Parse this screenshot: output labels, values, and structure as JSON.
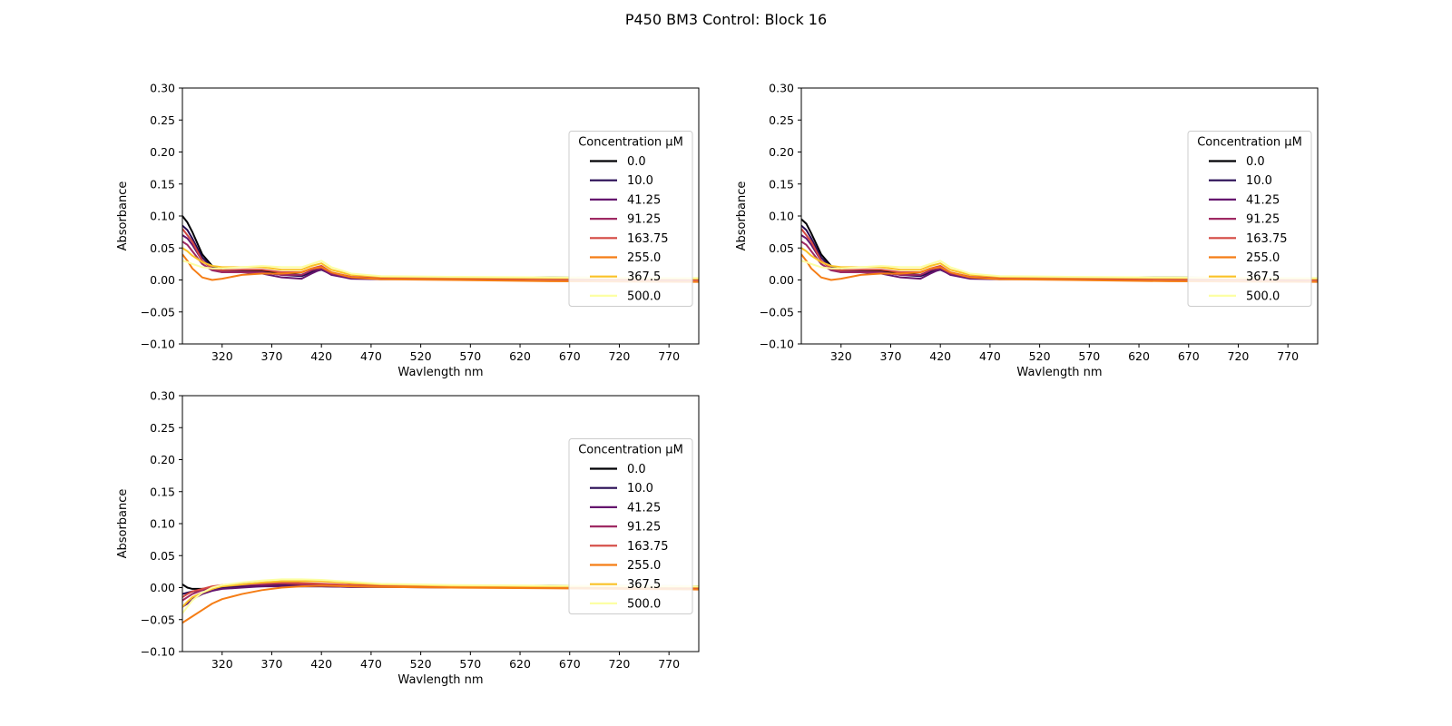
{
  "figure": {
    "title": "P450 BM3 Control:  Block 16"
  },
  "colors": {
    "series": [
      "#000004",
      "#280b54",
      "#65156e",
      "#9f2a63",
      "#d44842",
      "#f57d15",
      "#fac228",
      "#fcffa4"
    ]
  },
  "chart_data": [
    {
      "type": "line",
      "panel": "top-left",
      "xlabel": "Wavlength nm",
      "ylabel": "Absorbance",
      "xlim": [
        280,
        800
      ],
      "ylim": [
        -0.1,
        0.3
      ],
      "xticks": [
        "320",
        "370",
        "420",
        "470",
        "520",
        "570",
        "620",
        "670",
        "720",
        "770"
      ],
      "yticks": [
        "−0.10",
        "−0.05",
        "0.00",
        "0.05",
        "0.10",
        "0.15",
        "0.20",
        "0.25",
        "0.30"
      ],
      "legend": {
        "title": "Concentration µM",
        "placement": "center-right"
      },
      "x": [
        280,
        285,
        290,
        300,
        310,
        320,
        340,
        360,
        380,
        400,
        410,
        420,
        430,
        450,
        480,
        550,
        650,
        800
      ],
      "series": [
        {
          "name": "0.0",
          "values": [
            0.1,
            0.09,
            0.075,
            0.04,
            0.022,
            0.015,
            0.015,
            0.014,
            0.01,
            0.008,
            0.014,
            0.017,
            0.01,
            0.004,
            0.003,
            0.004,
            0.004,
            0.002
          ]
        },
        {
          "name": "10.0",
          "values": [
            0.085,
            0.078,
            0.065,
            0.035,
            0.02,
            0.014,
            0.013,
            0.012,
            0.008,
            0.006,
            0.012,
            0.016,
            0.009,
            0.003,
            0.002,
            0.003,
            0.003,
            0.001
          ]
        },
        {
          "name": "41.25",
          "values": [
            0.07,
            0.065,
            0.055,
            0.03,
            0.018,
            0.012,
            0.012,
            0.01,
            0.004,
            0.002,
            0.01,
            0.017,
            0.008,
            0.002,
            0.001,
            0.002,
            0.002,
            0.0
          ]
        },
        {
          "name": "91.25",
          "values": [
            0.06,
            0.055,
            0.045,
            0.025,
            0.015,
            0.012,
            0.012,
            0.012,
            0.008,
            0.008,
            0.015,
            0.019,
            0.01,
            0.004,
            0.002,
            0.002,
            0.001,
            0.0
          ]
        },
        {
          "name": "163.75",
          "values": [
            0.08,
            0.07,
            0.06,
            0.03,
            0.018,
            0.015,
            0.016,
            0.016,
            0.012,
            0.012,
            0.018,
            0.022,
            0.012,
            0.005,
            0.003,
            0.002,
            0.001,
            0.0
          ]
        },
        {
          "name": "255.0",
          "values": [
            0.04,
            0.03,
            0.018,
            0.004,
            0.0,
            0.002,
            0.008,
            0.01,
            0.01,
            0.012,
            0.018,
            0.02,
            0.012,
            0.004,
            0.001,
            0.0,
            -0.002,
            -0.003
          ]
        },
        {
          "name": "367.5",
          "values": [
            0.05,
            0.045,
            0.038,
            0.028,
            0.022,
            0.02,
            0.02,
            0.02,
            0.016,
            0.016,
            0.022,
            0.026,
            0.016,
            0.008,
            0.005,
            0.004,
            0.003,
            0.002
          ]
        },
        {
          "name": "500.0",
          "values": [
            0.03,
            0.028,
            0.025,
            0.02,
            0.018,
            0.018,
            0.02,
            0.022,
            0.02,
            0.02,
            0.025,
            0.03,
            0.02,
            0.01,
            0.006,
            0.005,
            0.004,
            0.003
          ]
        }
      ]
    },
    {
      "type": "line",
      "panel": "top-right",
      "xlabel": "Wavlength nm",
      "ylabel": "Absorbance",
      "xlim": [
        280,
        800
      ],
      "ylim": [
        -0.1,
        0.3
      ],
      "xticks": [
        "320",
        "370",
        "420",
        "470",
        "520",
        "570",
        "620",
        "670",
        "720",
        "770"
      ],
      "yticks": [
        "−0.10",
        "−0.05",
        "0.00",
        "0.05",
        "0.10",
        "0.15",
        "0.20",
        "0.25",
        "0.30"
      ],
      "legend": {
        "title": "Concentration µM",
        "placement": "center-right"
      },
      "x": [
        280,
        285,
        290,
        300,
        310,
        320,
        340,
        360,
        380,
        400,
        410,
        420,
        430,
        450,
        480,
        550,
        650,
        800
      ],
      "series": [
        {
          "name": "0.0",
          "values": [
            0.095,
            0.088,
            0.073,
            0.04,
            0.022,
            0.015,
            0.015,
            0.014,
            0.01,
            0.008,
            0.014,
            0.017,
            0.01,
            0.004,
            0.003,
            0.004,
            0.004,
            0.002
          ]
        },
        {
          "name": "10.0",
          "values": [
            0.085,
            0.078,
            0.065,
            0.035,
            0.02,
            0.014,
            0.013,
            0.012,
            0.008,
            0.006,
            0.012,
            0.016,
            0.009,
            0.003,
            0.002,
            0.003,
            0.003,
            0.001
          ]
        },
        {
          "name": "41.25",
          "values": [
            0.07,
            0.065,
            0.055,
            0.03,
            0.018,
            0.012,
            0.012,
            0.01,
            0.004,
            0.002,
            0.01,
            0.017,
            0.008,
            0.002,
            0.001,
            0.002,
            0.002,
            0.0
          ]
        },
        {
          "name": "91.25",
          "values": [
            0.06,
            0.055,
            0.045,
            0.025,
            0.015,
            0.012,
            0.012,
            0.012,
            0.008,
            0.008,
            0.015,
            0.019,
            0.01,
            0.004,
            0.002,
            0.002,
            0.001,
            0.0
          ]
        },
        {
          "name": "163.75",
          "values": [
            0.08,
            0.07,
            0.06,
            0.03,
            0.018,
            0.015,
            0.016,
            0.016,
            0.012,
            0.012,
            0.018,
            0.022,
            0.012,
            0.005,
            0.003,
            0.002,
            0.001,
            0.0
          ]
        },
        {
          "name": "255.0",
          "values": [
            0.04,
            0.03,
            0.018,
            0.004,
            0.0,
            0.002,
            0.008,
            0.01,
            0.01,
            0.012,
            0.018,
            0.02,
            0.012,
            0.004,
            0.001,
            0.0,
            -0.002,
            -0.003
          ]
        },
        {
          "name": "367.5",
          "values": [
            0.05,
            0.045,
            0.038,
            0.028,
            0.022,
            0.02,
            0.02,
            0.02,
            0.016,
            0.016,
            0.022,
            0.026,
            0.016,
            0.008,
            0.005,
            0.004,
            0.003,
            0.002
          ]
        },
        {
          "name": "500.0",
          "values": [
            0.03,
            0.028,
            0.025,
            0.02,
            0.018,
            0.018,
            0.02,
            0.022,
            0.02,
            0.02,
            0.025,
            0.03,
            0.02,
            0.01,
            0.006,
            0.005,
            0.004,
            0.003
          ]
        }
      ]
    },
    {
      "type": "line",
      "panel": "bottom-left",
      "xlabel": "Wavlength nm",
      "ylabel": "Absorbance",
      "xlim": [
        280,
        800
      ],
      "ylim": [
        -0.1,
        0.3
      ],
      "xticks": [
        "320",
        "370",
        "420",
        "470",
        "520",
        "570",
        "620",
        "670",
        "720",
        "770"
      ],
      "yticks": [
        "−0.10",
        "−0.05",
        "0.00",
        "0.05",
        "0.10",
        "0.15",
        "0.20",
        "0.25",
        "0.30"
      ],
      "legend": {
        "title": "Concentration µM",
        "placement": "center-right"
      },
      "x": [
        280,
        285,
        290,
        300,
        310,
        320,
        340,
        360,
        380,
        400,
        420,
        450,
        480,
        550,
        650,
        800
      ],
      "series": [
        {
          "name": "0.0",
          "values": [
            0.005,
            0.0,
            -0.002,
            -0.002,
            0.0,
            0.0,
            0.002,
            0.003,
            0.004,
            0.003,
            0.003,
            0.002,
            0.002,
            0.002,
            0.003,
            0.002
          ]
        },
        {
          "name": "10.0",
          "values": [
            -0.01,
            -0.008,
            -0.006,
            -0.004,
            -0.002,
            0.0,
            0.002,
            0.002,
            0.003,
            0.002,
            0.002,
            0.001,
            0.001,
            0.001,
            0.001,
            0.0
          ]
        },
        {
          "name": "41.25",
          "values": [
            -0.03,
            -0.025,
            -0.018,
            -0.01,
            -0.005,
            -0.002,
            0.0,
            0.002,
            0.002,
            0.002,
            0.002,
            0.001,
            0.001,
            0.0,
            0.0,
            0.0
          ]
        },
        {
          "name": "91.25",
          "values": [
            -0.02,
            -0.015,
            -0.01,
            -0.004,
            0.0,
            0.002,
            0.004,
            0.005,
            0.006,
            0.005,
            0.004,
            0.003,
            0.002,
            0.001,
            0.0,
            0.0
          ]
        },
        {
          "name": "163.75",
          "values": [
            -0.015,
            -0.01,
            -0.006,
            -0.002,
            0.002,
            0.004,
            0.006,
            0.007,
            0.008,
            0.007,
            0.006,
            0.004,
            0.003,
            0.001,
            0.0,
            -0.001
          ]
        },
        {
          "name": "255.0",
          "values": [
            -0.055,
            -0.05,
            -0.045,
            -0.035,
            -0.025,
            -0.018,
            -0.01,
            -0.004,
            0.0,
            0.002,
            0.003,
            0.002,
            0.001,
            0.0,
            -0.001,
            -0.003
          ]
        },
        {
          "name": "367.5",
          "values": [
            -0.03,
            -0.022,
            -0.015,
            -0.008,
            -0.002,
            0.002,
            0.005,
            0.008,
            0.01,
            0.01,
            0.01,
            0.007,
            0.005,
            0.003,
            0.002,
            0.001
          ]
        },
        {
          "name": "500.0",
          "values": [
            -0.04,
            -0.03,
            -0.02,
            -0.008,
            0.0,
            0.004,
            0.008,
            0.011,
            0.013,
            0.013,
            0.012,
            0.009,
            0.006,
            0.004,
            0.003,
            0.002
          ]
        }
      ]
    }
  ]
}
